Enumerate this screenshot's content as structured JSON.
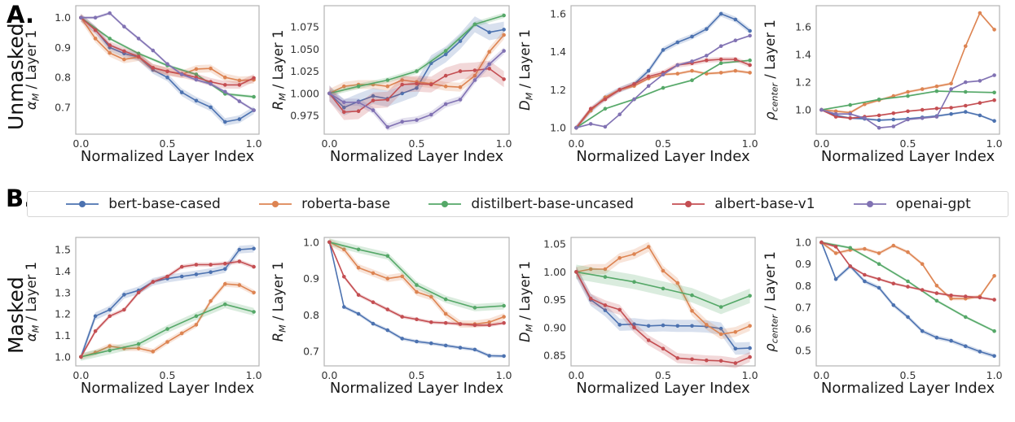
{
  "figure": {
    "panel_a_label": "A.",
    "panel_a_row_label": "Unmasked",
    "panel_b_label": "B.",
    "panel_b_row_label": "Masked"
  },
  "colors": {
    "bert": "#4c72b0",
    "roberta": "#dd8452",
    "distilbert": "#55a868",
    "albert": "#c44e52",
    "openai": "#8172b3",
    "spine": "#b3b3b3",
    "tick_text": "#333333",
    "label_text": "#1a1a1a"
  },
  "legend": {
    "entries": [
      {
        "label": "bert-base-cased",
        "color": "#4c72b0"
      },
      {
        "label": "roberta-base",
        "color": "#dd8452"
      },
      {
        "label": "distilbert-base-uncased",
        "color": "#55a868"
      },
      {
        "label": "albert-base-v1",
        "color": "#c44e52"
      },
      {
        "label": "openai-gpt",
        "color": "#8172b3"
      }
    ]
  },
  "chart_data": [
    {
      "type": "line",
      "panel": "Unmasked",
      "xlabel": "Normalized Layer Index",
      "ylabel": "alpha_M / Layer 1",
      "ylabel_parts": {
        "sym": "α",
        "sub": "M",
        "rest": " / Layer 1"
      },
      "xlim": [
        -0.03,
        1.03
      ],
      "ylim": [
        0.61,
        1.04
      ],
      "xticks": [
        0.0,
        0.5,
        1.0
      ],
      "xtick_labels": [
        "0.0",
        "0.5",
        "1.0"
      ],
      "yticks": [
        0.7,
        0.8,
        0.9,
        1.0
      ],
      "ytick_labels": [
        "0.7",
        "0.8",
        "0.9",
        "1.0"
      ],
      "series": [
        {
          "name": "bert-base-cased",
          "color": "#4c72b0",
          "band": 0.013,
          "y": [
            1.0,
            0.96,
            0.9,
            0.88,
            0.868,
            0.825,
            0.8,
            0.75,
            0.722,
            0.7,
            0.651,
            0.66,
            0.69
          ]
        },
        {
          "name": "roberta-base",
          "color": "#dd8452",
          "band": 0.013,
          "y": [
            1.0,
            0.93,
            0.882,
            0.86,
            0.868,
            0.832,
            0.82,
            0.81,
            0.828,
            0.83,
            0.8,
            0.79,
            0.792
          ]
        },
        {
          "name": "distilbert-base-uncased",
          "color": "#55a868",
          "band": 0.005,
          "y": [
            1.0,
            0.93,
            0.88,
            0.84,
            0.81,
            0.745,
            0.735
          ]
        },
        {
          "name": "albert-base-v1",
          "color": "#c44e52",
          "band": 0.013,
          "y": [
            1.0,
            0.958,
            0.908,
            0.888,
            0.87,
            0.832,
            0.82,
            0.812,
            0.8,
            0.785,
            0.775,
            0.775,
            0.798
          ]
        },
        {
          "name": "openai-gpt",
          "color": "#8172b3",
          "band": 0.005,
          "y": [
            1.0,
            1.0,
            1.015,
            0.97,
            0.93,
            0.89,
            0.845,
            0.81,
            0.792,
            0.778,
            0.752,
            0.72,
            0.69
          ]
        }
      ]
    },
    {
      "type": "line",
      "panel": "Unmasked",
      "xlabel": "Normalized Layer Index",
      "ylabel": "R_M / Layer 1",
      "ylabel_parts": {
        "sym": "R",
        "sub": "M",
        "rest": " / Layer 1"
      },
      "xlim": [
        -0.03,
        1.03
      ],
      "ylim": [
        0.954,
        1.099
      ],
      "xticks": [
        0.0,
        0.5,
        1.0
      ],
      "xtick_labels": [
        "0.0",
        "0.5",
        "1.0"
      ],
      "yticks": [
        0.975,
        1.0,
        1.025,
        1.05,
        1.075
      ],
      "ytick_labels": [
        "0.975",
        "1.000",
        "1.025",
        "1.050",
        "1.075"
      ],
      "series": [
        {
          "name": "bert-base-cased",
          "color": "#4c72b0",
          "band": 0.009,
          "y": [
            1.0,
            0.984,
            0.991,
            0.997,
            0.994,
            1.0,
            1.006,
            1.034,
            1.044,
            1.059,
            1.078,
            1.069,
            1.072
          ]
        },
        {
          "name": "roberta-base",
          "color": "#dd8452",
          "band": 0.005,
          "y": [
            1.0,
            1.008,
            1.01,
            1.01,
            1.008,
            1.015,
            1.013,
            1.011,
            1.008,
            1.007,
            1.02,
            1.047,
            1.066
          ]
        },
        {
          "name": "distilbert-base-uncased",
          "color": "#55a868",
          "band": 0.003,
          "y": [
            1.0,
            1.008,
            1.015,
            1.025,
            1.048,
            1.078,
            1.088
          ]
        },
        {
          "name": "albert-base-v1",
          "color": "#c44e52",
          "band": 0.009,
          "y": [
            1.0,
            0.979,
            0.98,
            0.992,
            0.993,
            1.01,
            1.011,
            1.01,
            1.02,
            1.025,
            1.026,
            1.028,
            1.016
          ]
        },
        {
          "name": "openai-gpt",
          "color": "#8172b3",
          "band": 0.004,
          "y": [
            1.0,
            0.99,
            0.99,
            0.981,
            0.962,
            0.968,
            0.97,
            0.976,
            0.988,
            0.993,
            1.015,
            1.033,
            1.048
          ]
        }
      ]
    },
    {
      "type": "line",
      "panel": "Unmasked",
      "xlabel": "Normalized Layer Index",
      "ylabel": "D_M / Layer 1",
      "ylabel_parts": {
        "sym": "D",
        "sub": "M",
        "rest": " / Layer 1"
      },
      "xlim": [
        -0.03,
        1.03
      ],
      "ylim": [
        0.966,
        1.643
      ],
      "xticks": [
        0.0,
        0.5,
        1.0
      ],
      "xtick_labels": [
        "0.0",
        "0.5",
        "1.0"
      ],
      "yticks": [
        1.0,
        1.2,
        1.4,
        1.6
      ],
      "ytick_labels": [
        "1.0",
        "1.2",
        "1.4",
        "1.6"
      ],
      "series": [
        {
          "name": "bert-base-cased",
          "color": "#4c72b0",
          "band": 0.015,
          "y": [
            1.0,
            1.09,
            1.16,
            1.2,
            1.23,
            1.3,
            1.41,
            1.45,
            1.48,
            1.52,
            1.6,
            1.57,
            1.51
          ]
        },
        {
          "name": "roberta-base",
          "color": "#dd8452",
          "band": 0.008,
          "y": [
            1.0,
            1.09,
            1.16,
            1.2,
            1.22,
            1.26,
            1.28,
            1.285,
            1.3,
            1.285,
            1.29,
            1.3,
            1.29
          ]
        },
        {
          "name": "distilbert-base-uncased",
          "color": "#55a868",
          "band": 0.005,
          "y": [
            1.0,
            1.1,
            1.15,
            1.21,
            1.25,
            1.34,
            1.355
          ]
        },
        {
          "name": "albert-base-v1",
          "color": "#c44e52",
          "band": 0.013,
          "y": [
            1.0,
            1.1,
            1.15,
            1.2,
            1.23,
            1.27,
            1.29,
            1.33,
            1.34,
            1.355,
            1.36,
            1.36,
            1.33
          ]
        },
        {
          "name": "openai-gpt",
          "color": "#8172b3",
          "band": 0.005,
          "y": [
            1.0,
            1.02,
            1.005,
            1.07,
            1.15,
            1.22,
            1.28,
            1.33,
            1.35,
            1.38,
            1.43,
            1.46,
            1.485
          ]
        }
      ]
    },
    {
      "type": "line",
      "panel": "Unmasked",
      "xlabel": "Normalized Layer Index",
      "ylabel": "rho_center / Layer 1",
      "ylabel_parts": {
        "sym": "ρ",
        "sub": "center",
        "rest": " / Layer 1"
      },
      "xlim": [
        -0.03,
        1.03
      ],
      "ylim": [
        0.824,
        1.753
      ],
      "xticks": [
        0.0,
        0.5,
        1.0
      ],
      "xtick_labels": [
        "0.0",
        "0.5",
        "1.0"
      ],
      "yticks": [
        1.0,
        1.2,
        1.4,
        1.6
      ],
      "ytick_labels": [
        "1.0",
        "1.2",
        "1.4",
        "1.6"
      ],
      "series": [
        {
          "name": "bert-base-cased",
          "color": "#4c72b0",
          "band": 0.008,
          "y": [
            1.0,
            0.96,
            0.94,
            0.935,
            0.925,
            0.93,
            0.935,
            0.945,
            0.955,
            0.97,
            0.985,
            0.96,
            0.92
          ]
        },
        {
          "name": "roberta-base",
          "color": "#dd8452",
          "band": 0.01,
          "y": [
            1.0,
            0.99,
            0.98,
            1.04,
            1.07,
            1.1,
            1.13,
            1.15,
            1.17,
            1.19,
            1.46,
            1.7,
            1.58
          ]
        },
        {
          "name": "distilbert-base-uncased",
          "color": "#55a868",
          "band": 0.006,
          "y": [
            1.0,
            1.035,
            1.075,
            1.1,
            1.135,
            1.13,
            1.125
          ]
        },
        {
          "name": "albert-base-v1",
          "color": "#c44e52",
          "band": 0.006,
          "y": [
            1.0,
            0.95,
            0.94,
            0.95,
            0.96,
            0.975,
            0.99,
            1.0,
            1.01,
            1.015,
            1.03,
            1.05,
            1.07
          ]
        },
        {
          "name": "openai-gpt",
          "color": "#8172b3",
          "band": 0.006,
          "y": [
            1.0,
            0.97,
            0.97,
            0.94,
            0.87,
            0.88,
            0.93,
            0.94,
            0.95,
            1.15,
            1.2,
            1.21,
            1.25
          ]
        }
      ]
    },
    {
      "type": "line",
      "panel": "Masked",
      "xlabel": "Normalized Layer Index",
      "ylabel": "alpha_M / Layer 1",
      "ylabel_parts": {
        "sym": "α",
        "sub": "M",
        "rest": " / Layer 1"
      },
      "xlim": [
        -0.03,
        1.03
      ],
      "ylim": [
        0.958,
        1.557
      ],
      "xticks": [
        0.0,
        0.5,
        1.0
      ],
      "xtick_labels": [
        "0.0",
        "0.5",
        "1.0"
      ],
      "yticks": [
        1.0,
        1.1,
        1.2,
        1.3,
        1.4,
        1.5
      ],
      "ytick_labels": [
        "1.0",
        "1.1",
        "1.2",
        "1.3",
        "1.4",
        "1.5"
      ],
      "series": [
        {
          "name": "bert-base-cased",
          "color": "#4c72b0",
          "band": 0.018,
          "y": [
            1.0,
            1.19,
            1.22,
            1.29,
            1.31,
            1.35,
            1.365,
            1.375,
            1.385,
            1.395,
            1.41,
            1.5,
            1.505
          ]
        },
        {
          "name": "roberta-base",
          "color": "#dd8452",
          "band": 0.013,
          "y": [
            1.0,
            1.02,
            1.05,
            1.04,
            1.04,
            1.025,
            1.07,
            1.11,
            1.15,
            1.26,
            1.34,
            1.335,
            1.3
          ]
        },
        {
          "name": "distilbert-base-uncased",
          "color": "#55a868",
          "band": 0.018,
          "y": [
            1.0,
            1.03,
            1.06,
            1.13,
            1.19,
            1.245,
            1.21
          ]
        },
        {
          "name": "albert-base-v1",
          "color": "#c44e52",
          "band": 0.01,
          "y": [
            1.0,
            1.12,
            1.19,
            1.22,
            1.3,
            1.35,
            1.375,
            1.42,
            1.43,
            1.43,
            1.435,
            1.445,
            1.42
          ]
        }
      ]
    },
    {
      "type": "line",
      "panel": "Masked",
      "xlabel": "Normalized Layer Index",
      "ylabel": "R_M / Layer 1",
      "ylabel_parts": {
        "sym": "R",
        "sub": "M",
        "rest": " / Layer 1"
      },
      "xlim": [
        -0.03,
        1.03
      ],
      "ylim": [
        0.66,
        1.013
      ],
      "xticks": [
        0.0,
        0.5,
        1.0
      ],
      "xtick_labels": [
        "0.0",
        "0.5",
        "1.0"
      ],
      "yticks": [
        0.7,
        0.8,
        0.9,
        1.0
      ],
      "ytick_labels": [
        "0.7",
        "0.8",
        "0.9",
        "1.0"
      ],
      "series": [
        {
          "name": "bert-base-cased",
          "color": "#4c72b0",
          "band": 0.005,
          "y": [
            1.0,
            0.822,
            0.803,
            0.776,
            0.758,
            0.735,
            0.727,
            0.722,
            0.716,
            0.71,
            0.705,
            0.688,
            0.687
          ]
        },
        {
          "name": "roberta-base",
          "color": "#dd8452",
          "band": 0.01,
          "y": [
            1.0,
            0.98,
            0.93,
            0.915,
            0.9,
            0.906,
            0.863,
            0.85,
            0.803,
            0.775,
            0.775,
            0.78,
            0.795
          ]
        },
        {
          "name": "distilbert-base-uncased",
          "color": "#55a868",
          "band": 0.01,
          "y": [
            1.0,
            0.98,
            0.962,
            0.882,
            0.843,
            0.82,
            0.825
          ]
        },
        {
          "name": "albert-base-v1",
          "color": "#c44e52",
          "band": 0.005,
          "y": [
            1.0,
            0.905,
            0.855,
            0.835,
            0.815,
            0.795,
            0.788,
            0.78,
            0.778,
            0.775,
            0.772,
            0.772,
            0.778
          ]
        }
      ]
    },
    {
      "type": "line",
      "panel": "Masked",
      "xlabel": "Normalized Layer Index",
      "ylabel": "D_M / Layer 1",
      "ylabel_parts": {
        "sym": "D",
        "sub": "M",
        "rest": " / Layer 1"
      },
      "xlim": [
        -0.03,
        1.03
      ],
      "ylim": [
        0.831,
        1.062
      ],
      "xticks": [
        0.0,
        0.5,
        1.0
      ],
      "xtick_labels": [
        "0.0",
        "0.5",
        "1.0"
      ],
      "yticks": [
        0.85,
        0.9,
        0.95,
        1.0,
        1.05
      ],
      "ytick_labels": [
        "0.85",
        "0.90",
        "0.95",
        "1.00",
        "1.05"
      ],
      "series": [
        {
          "name": "bert-base-cased",
          "color": "#4c72b0",
          "band": 0.011,
          "y": [
            1.0,
            0.95,
            0.931,
            0.905,
            0.906,
            0.903,
            0.904,
            0.903,
            0.903,
            0.902,
            0.898,
            0.862,
            0.863
          ]
        },
        {
          "name": "roberta-base",
          "color": "#dd8452",
          "band": 0.009,
          "y": [
            1.0,
            1.005,
            1.005,
            1.025,
            1.032,
            1.045,
            1.002,
            0.98,
            0.93,
            0.905,
            0.888,
            0.892,
            0.903
          ]
        },
        {
          "name": "distilbert-base-uncased",
          "color": "#55a868",
          "band": 0.013,
          "y": [
            1.0,
            0.991,
            0.982,
            0.97,
            0.958,
            0.937,
            0.957
          ]
        },
        {
          "name": "albert-base-v1",
          "color": "#c44e52",
          "band": 0.009,
          "y": [
            1.0,
            0.952,
            0.94,
            0.932,
            0.9,
            0.877,
            0.862,
            0.845,
            0.843,
            0.841,
            0.84,
            0.836,
            0.847
          ]
        }
      ]
    },
    {
      "type": "line",
      "panel": "Masked",
      "xlabel": "Normalized Layer Index",
      "ylabel": "rho_center / Layer 1",
      "ylabel_parts": {
        "sym": "ρ",
        "sub": "center",
        "rest": " / Layer 1"
      },
      "xlim": [
        -0.03,
        1.03
      ],
      "ylim": [
        0.429,
        1.023
      ],
      "xticks": [
        0.0,
        0.5,
        1.0
      ],
      "xtick_labels": [
        "0.0",
        "0.5",
        "1.0"
      ],
      "yticks": [
        0.5,
        0.6,
        0.7,
        0.8,
        0.9,
        1.0
      ],
      "ytick_labels": [
        "0.5",
        "0.6",
        "0.7",
        "0.8",
        "0.9",
        "1.0"
      ],
      "series": [
        {
          "name": "bert-base-cased",
          "color": "#4c72b0",
          "band": 0.01,
          "y": [
            1.0,
            0.83,
            0.89,
            0.82,
            0.79,
            0.71,
            0.655,
            0.59,
            0.56,
            0.545,
            0.52,
            0.495,
            0.475
          ]
        },
        {
          "name": "roberta-base",
          "color": "#dd8452",
          "band": 0.008,
          "y": [
            1.0,
            0.95,
            0.965,
            0.97,
            0.95,
            0.985,
            0.955,
            0.9,
            0.8,
            0.74,
            0.74,
            0.75,
            0.845
          ]
        },
        {
          "name": "distilbert-base-uncased",
          "color": "#55a868",
          "band": 0.006,
          "y": [
            1.0,
            0.975,
            0.9,
            0.82,
            0.73,
            0.655,
            0.59
          ]
        },
        {
          "name": "albert-base-v1",
          "color": "#c44e52",
          "band": 0.006,
          "y": [
            1.0,
            0.98,
            0.89,
            0.85,
            0.83,
            0.81,
            0.795,
            0.78,
            0.765,
            0.755,
            0.75,
            0.745,
            0.735
          ]
        }
      ]
    }
  ]
}
